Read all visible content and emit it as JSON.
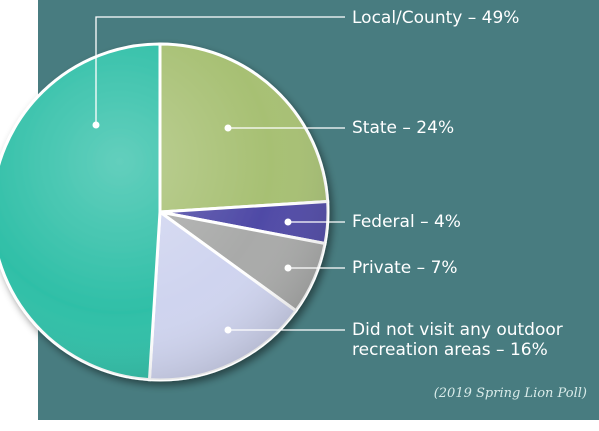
{
  "chart_data": {
    "type": "pie",
    "slices": [
      {
        "label": "Local/County – 49%",
        "value": 49,
        "color": "#2fbfa7"
      },
      {
        "label": "State – 24%",
        "value": 24,
        "color": "#a7c073"
      },
      {
        "label": "Federal – 4%",
        "value": 4,
        "color": "#4f4aa6"
      },
      {
        "label": "Private – 7%",
        "value": 7,
        "color": "#a9aaa9"
      },
      {
        "label": "Did not visit any outdoor recreation areas – 16%",
        "value": 16,
        "color": "#cfd4ef"
      }
    ],
    "legend_placement": "right, callout lines",
    "background_color": "#487c80"
  },
  "source_note": "(2019 Spring Lion Poll)",
  "labels": {
    "local": "Local/County – 49%",
    "state": "State – 24%",
    "federal": "Federal – 4%",
    "private": "Private – 7%",
    "none_line1": "Did not visit any outdoor",
    "none_line2": "recreation areas – 16%"
  }
}
